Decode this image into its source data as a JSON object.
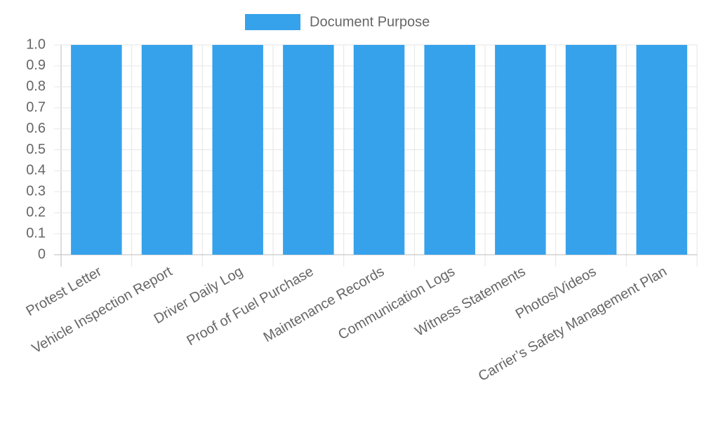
{
  "chart_data": {
    "type": "bar",
    "categories": [
      "Protest Letter",
      "Vehicle Inspection Report",
      "Driver Daily Log",
      "Proof of Fuel Purchase",
      "Maintenance Records",
      "Communication Logs",
      "Witness Statements",
      "Photos/Videos",
      "Carrier’s Safety Management Plan"
    ],
    "series": [
      {
        "name": "Document Purpose",
        "color": "#36a2eb",
        "values": [
          1,
          1,
          1,
          1,
          1,
          1,
          1,
          1,
          1
        ]
      }
    ],
    "ylim": [
      0,
      1
    ],
    "yticks": [
      0,
      0.1,
      0.2,
      0.3,
      0.4,
      0.5,
      0.6,
      0.7,
      0.8,
      0.9,
      {
        "value": 1,
        "label": "1.0"
      }
    ],
    "grid": true,
    "legend": "top"
  }
}
